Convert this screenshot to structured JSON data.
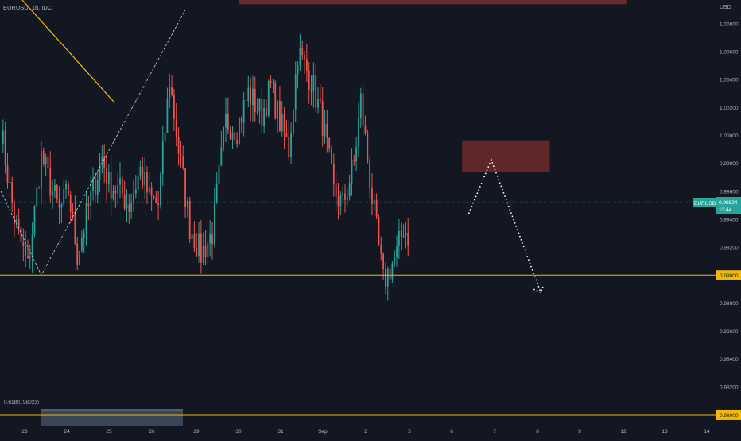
{
  "symbol_label": "EURUSD, 1h, IDC",
  "axis_unit": "USD",
  "colors": {
    "background": "#131722",
    "bull": "#26a69a",
    "bear": "#ef5350",
    "axis_text": "#b2b5be",
    "level_line": "#f0b90b",
    "trend_line": "#f0b90b",
    "zone": "#7a2e2e",
    "fib_zone": "#3a4658",
    "price_tag": "#26a69a"
  },
  "price_axis": {
    "ticks": [
      "1.00800",
      "1.00600",
      "1.00400",
      "1.00200",
      "1.00000",
      "0.99800",
      "0.99600",
      "0.99400",
      "0.99200",
      "0.98800",
      "0.98600",
      "0.98400",
      "0.98200"
    ],
    "ylim": [
      0.9792,
      1.0097
    ]
  },
  "current_price": {
    "symbol": "EURUSD",
    "value": "0.99524",
    "countdown": "13:44"
  },
  "horizontal_levels": [
    {
      "value": 0.99,
      "label": "0.99000"
    },
    {
      "value": 0.98,
      "label": "0.98000"
    }
  ],
  "fib": {
    "label": "0.618(0.98023)",
    "value": 0.98023
  },
  "time_axis": {
    "labels": [
      "23",
      "24",
      "25",
      "26",
      "29",
      "30",
      "31",
      "Sep",
      "2",
      "5",
      "6",
      "7",
      "8",
      "9",
      "12",
      "13",
      "14"
    ]
  },
  "chart_data": {
    "type": "candlestick",
    "title": "EURUSD, 1h, IDC",
    "ylabel": "USD",
    "ylim": [
      0.9792,
      1.0097
    ],
    "x_tick_labels": [
      "23",
      "24",
      "25",
      "26",
      "29",
      "30",
      "31",
      "Sep",
      "2",
      "5",
      "6",
      "7",
      "8",
      "9",
      "12",
      "13",
      "14"
    ],
    "y_tick_labels": [
      "1.00800",
      "1.00600",
      "1.00400",
      "1.00200",
      "1.00000",
      "0.99800",
      "0.99600",
      "0.99400",
      "0.99200",
      "0.98800",
      "0.98600",
      "0.98400",
      "0.98200"
    ],
    "price_path": {
      "x_index": [
        0,
        6,
        12,
        18,
        22,
        26,
        30,
        34,
        40,
        45,
        48,
        53,
        57,
        62,
        66,
        70,
        75,
        79,
        84,
        89,
        94,
        100,
        105,
        110,
        116,
        120,
        124,
        128,
        132,
        138,
        143,
        148,
        152,
        157,
        160,
        165,
        170,
        176,
        179,
        181
      ],
      "close": [
        1.0005,
        0.994,
        0.9905,
        0.9985,
        0.9965,
        0.9945,
        0.996,
        0.9915,
        0.9955,
        0.9985,
        0.9965,
        0.996,
        0.995,
        0.9975,
        0.9955,
        0.995,
        1.004,
        0.999,
        0.9935,
        0.9915,
        0.993,
        1.001,
        1.0005,
        1.003,
        1.0015,
        1.0035,
        1.001,
        0.999,
        1.006,
        1.004,
        1.001,
        0.996,
        0.995,
        0.998,
        1.0025,
        0.9955,
        0.9895,
        0.9915,
        0.9935,
        0.9928
      ],
      "wick_range": 0.0012
    },
    "annotations": [
      {
        "type": "zone",
        "from_index": 205,
        "to_index": 244,
        "price_low": 0.99735,
        "price_high": 0.99965
      },
      {
        "type": "zone",
        "from_index": 106,
        "to_index": 278,
        "price_low": 1.0094,
        "price_high": 1.0097
      },
      {
        "type": "horizontal_line",
        "price": 0.99,
        "label": "0.99000"
      },
      {
        "type": "horizontal_line",
        "price": 0.98,
        "label": "0.98000"
      },
      {
        "type": "fib_level",
        "ratio": 0.618,
        "price": 0.98023,
        "label": "0.618(0.98023)"
      },
      {
        "type": "projection",
        "points": [
          [
            208,
            0.9944
          ],
          [
            218,
            0.99825
          ],
          [
            240,
            0.98875
          ],
          [
            242,
            0.98925
          ]
        ]
      },
      {
        "type": "zigzag",
        "points": [
          [
            0,
            0.996
          ],
          [
            18,
            0.99
          ],
          [
            82,
            1.009
          ]
        ]
      }
    ],
    "current_price": 0.99524
  }
}
